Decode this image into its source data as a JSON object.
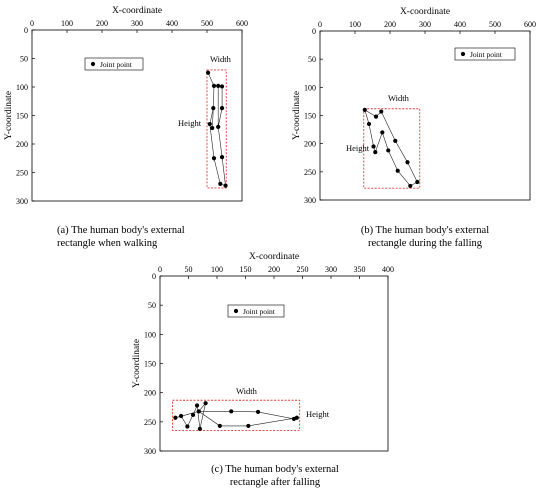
{
  "chart_data": [
    {
      "type": "scatter",
      "caption_line1": "(a) The human body's external",
      "caption_line2": "rectangle when walking",
      "xlabel": "X-coordinate",
      "ylabel": "Y-coordinate",
      "xlim": [
        0,
        600
      ],
      "ylim": [
        0,
        300
      ],
      "x_axis_position": "top",
      "y_axis_inverted": true,
      "xticks": [
        0,
        100,
        200,
        300,
        400,
        500,
        600
      ],
      "yticks": [
        0,
        50,
        100,
        150,
        200,
        250,
        300
      ],
      "legend": {
        "label": "Joint point",
        "placement": "upper-left"
      },
      "points": [
        {
          "x": 503,
          "y": 75
        },
        {
          "x": 520,
          "y": 98
        },
        {
          "x": 532,
          "y": 98
        },
        {
          "x": 543,
          "y": 99
        },
        {
          "x": 518,
          "y": 137
        },
        {
          "x": 543,
          "y": 137
        },
        {
          "x": 508,
          "y": 165
        },
        {
          "x": 515,
          "y": 172
        },
        {
          "x": 532,
          "y": 170
        },
        {
          "x": 520,
          "y": 225
        },
        {
          "x": 543,
          "y": 223
        },
        {
          "x": 538,
          "y": 270
        },
        {
          "x": 553,
          "y": 273
        }
      ],
      "skeleton": [
        [
          [
            503,
            75
          ],
          [
            520,
            98
          ],
          [
            518,
            137
          ],
          [
            508,
            165
          ],
          [
            520,
            225
          ],
          [
            538,
            270
          ],
          [
            553,
            273
          ],
          [
            543,
            223
          ],
          [
            532,
            170
          ],
          [
            543,
            137
          ],
          [
            543,
            99
          ],
          [
            532,
            98
          ],
          [
            520,
            98
          ]
        ],
        [
          [
            515,
            172
          ],
          [
            518,
            137
          ]
        ],
        [
          [
            532,
            98
          ],
          [
            532,
            170
          ]
        ]
      ],
      "rectangle": {
        "x0": 500,
        "x1": 555,
        "y0": 70,
        "y1": 277
      },
      "width_label": "Width",
      "height_label": "Height",
      "colors": {
        "rectangle": "#e53935",
        "points": "#000000"
      }
    },
    {
      "type": "scatter",
      "caption_line1": "(b) The human body's external",
      "caption_line2": "rectangle during the falling",
      "xlabel": "X-coordinate",
      "ylabel": "Y-coordinate",
      "xlim": [
        0,
        600
      ],
      "ylim": [
        0,
        300
      ],
      "x_axis_position": "top",
      "y_axis_inverted": true,
      "xticks": [
        0,
        100,
        200,
        300,
        400,
        500,
        600
      ],
      "yticks": [
        0,
        50,
        100,
        150,
        200,
        250,
        300
      ],
      "legend": {
        "label": "Joint point",
        "placement": "upper-right"
      },
      "points": [
        {
          "x": 128,
          "y": 140
        },
        {
          "x": 140,
          "y": 165
        },
        {
          "x": 160,
          "y": 152
        },
        {
          "x": 175,
          "y": 143
        },
        {
          "x": 178,
          "y": 180
        },
        {
          "x": 153,
          "y": 205
        },
        {
          "x": 158,
          "y": 215
        },
        {
          "x": 195,
          "y": 212
        },
        {
          "x": 215,
          "y": 195
        },
        {
          "x": 222,
          "y": 248
        },
        {
          "x": 250,
          "y": 233
        },
        {
          "x": 258,
          "y": 275
        },
        {
          "x": 278,
          "y": 268
        }
      ],
      "skeleton": [
        [
          [
            128,
            140
          ],
          [
            140,
            165
          ],
          [
            153,
            205
          ],
          [
            158,
            215
          ],
          [
            178,
            180
          ],
          [
            195,
            212
          ],
          [
            222,
            248
          ],
          [
            258,
            275
          ],
          [
            278,
            268
          ],
          [
            250,
            233
          ],
          [
            215,
            195
          ],
          [
            175,
            143
          ],
          [
            160,
            152
          ],
          [
            128,
            140
          ]
        ]
      ],
      "rectangle": {
        "x0": 125,
        "x1": 285,
        "y0": 138,
        "y1": 279
      },
      "width_label": "Width",
      "height_label": "Height",
      "colors": {
        "rectangle": "#e53935",
        "points": "#000000"
      }
    },
    {
      "type": "scatter",
      "caption_line1": "(c) The human body's external",
      "caption_line2": "rectangle after falling",
      "xlabel": "X-coordinate",
      "ylabel": "Y-coordinate",
      "xlim": [
        0,
        400
      ],
      "ylim": [
        0,
        300
      ],
      "x_axis_position": "top",
      "y_axis_inverted": true,
      "xticks": [
        0,
        50,
        100,
        150,
        200,
        250,
        300,
        350,
        400
      ],
      "yticks": [
        0,
        50,
        100,
        150,
        200,
        250,
        300
      ],
      "legend": {
        "label": "Joint point",
        "placement": "upper-center"
      },
      "points": [
        {
          "x": 27,
          "y": 243
        },
        {
          "x": 37,
          "y": 240
        },
        {
          "x": 48,
          "y": 258
        },
        {
          "x": 58,
          "y": 238
        },
        {
          "x": 65,
          "y": 222
        },
        {
          "x": 68,
          "y": 232
        },
        {
          "x": 70,
          "y": 262
        },
        {
          "x": 80,
          "y": 218
        },
        {
          "x": 105,
          "y": 257
        },
        {
          "x": 125,
          "y": 232
        },
        {
          "x": 155,
          "y": 257
        },
        {
          "x": 172,
          "y": 233
        },
        {
          "x": 235,
          "y": 245
        },
        {
          "x": 240,
          "y": 243
        }
      ],
      "skeleton": [
        [
          [
            27,
            243
          ],
          [
            37,
            240
          ],
          [
            48,
            258
          ],
          [
            58,
            238
          ],
          [
            65,
            222
          ],
          [
            70,
            262
          ],
          [
            80,
            218
          ],
          [
            68,
            232
          ],
          [
            105,
            257
          ],
          [
            155,
            257
          ],
          [
            240,
            243
          ],
          [
            235,
            245
          ],
          [
            172,
            233
          ],
          [
            125,
            232
          ],
          [
            68,
            232
          ],
          [
            27,
            243
          ]
        ]
      ],
      "rectangle": {
        "x0": 22,
        "x1": 245,
        "y0": 213,
        "y1": 265
      },
      "width_label": "Width",
      "height_label": "Height",
      "colors": {
        "rectangle": "#e53935",
        "points": "#000000"
      }
    }
  ]
}
